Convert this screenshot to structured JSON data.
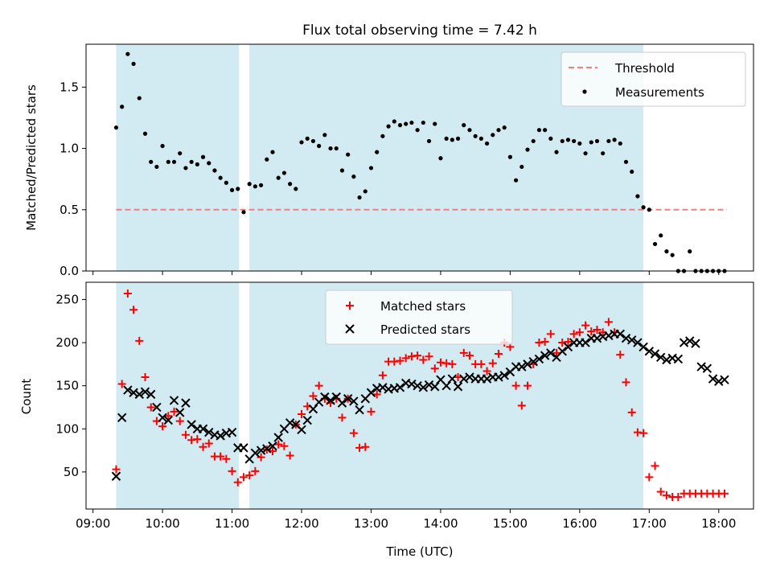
{
  "title": "Flux total observing time = 7.42 h",
  "colors": {
    "shade": "#add8e6",
    "threshold": "#f08080",
    "measurement": "#000000",
    "matched": "#ff0000",
    "predicted": "#000000"
  },
  "chart_data": [
    {
      "type": "scatter",
      "ylabel": "Matched/Predicted stars",
      "xlabel": "",
      "xlim": [
        "08:54",
        "18:30"
      ],
      "ylim": [
        0,
        1.85
      ],
      "yticks": [
        "0.0",
        "0.5",
        "1.0",
        "1.5"
      ],
      "grid": false,
      "legend_position": "top-right",
      "legend": [
        "Threshold",
        "Measurements"
      ],
      "shaded_intervals": [
        [
          "09:20",
          "11:06"
        ],
        [
          "11:15",
          "16:55"
        ]
      ],
      "threshold": {
        "name": "Threshold",
        "x": [
          "09:20",
          "18:07"
        ],
        "y": 0.5
      },
      "series": [
        {
          "name": "Measurements",
          "x": [
            "09:20",
            "09:25",
            "09:30",
            "09:35",
            "09:40",
            "09:45",
            "09:50",
            "09:55",
            "10:00",
            "10:05",
            "10:10",
            "10:15",
            "10:20",
            "10:25",
            "10:30",
            "10:35",
            "10:40",
            "10:45",
            "10:50",
            "10:55",
            "11:00",
            "11:05",
            "11:10",
            "11:15",
            "11:20",
            "11:25",
            "11:30",
            "11:35",
            "11:40",
            "11:45",
            "11:50",
            "11:55",
            "12:00",
            "12:05",
            "12:10",
            "12:15",
            "12:20",
            "12:25",
            "12:30",
            "12:35",
            "12:40",
            "12:45",
            "12:50",
            "12:55",
            "13:00",
            "13:05",
            "13:10",
            "13:15",
            "13:20",
            "13:25",
            "13:30",
            "13:35",
            "13:40",
            "13:45",
            "13:50",
            "13:55",
            "14:00",
            "14:05",
            "14:10",
            "14:15",
            "14:20",
            "14:25",
            "14:30",
            "14:35",
            "14:40",
            "14:45",
            "14:50",
            "14:55",
            "15:00",
            "15:05",
            "15:10",
            "15:15",
            "15:20",
            "15:25",
            "15:30",
            "15:35",
            "15:40",
            "15:45",
            "15:50",
            "15:55",
            "16:00",
            "16:05",
            "16:10",
            "16:15",
            "16:20",
            "16:25",
            "16:30",
            "16:35",
            "16:40",
            "16:45",
            "16:50",
            "16:55",
            "17:00",
            "17:05",
            "17:10",
            "17:15",
            "17:20",
            "17:25",
            "17:30",
            "17:35",
            "17:40",
            "17:45",
            "17:50",
            "17:55",
            "18:00",
            "18:05"
          ],
          "y": [
            1.17,
            1.34,
            1.77,
            1.69,
            1.41,
            1.12,
            0.89,
            0.85,
            1.02,
            0.89,
            0.89,
            0.96,
            0.84,
            0.89,
            0.87,
            0.93,
            0.88,
            0.82,
            0.76,
            0.72,
            0.66,
            0.67,
            0.48,
            0.71,
            0.69,
            0.7,
            0.91,
            0.97,
            0.76,
            0.8,
            0.71,
            0.67,
            1.05,
            1.08,
            1.06,
            1.02,
            1.11,
            1.0,
            1.0,
            0.82,
            0.95,
            0.77,
            0.6,
            0.65,
            0.84,
            0.97,
            1.1,
            1.18,
            1.22,
            1.19,
            1.2,
            1.21,
            1.15,
            1.21,
            1.06,
            1.2,
            0.92,
            1.08,
            1.07,
            1.08,
            1.19,
            1.15,
            1.1,
            1.08,
            1.04,
            1.11,
            1.15,
            1.17,
            0.93,
            0.74,
            0.85,
            0.99,
            1.06,
            1.15,
            1.15,
            1.08,
            0.97,
            1.06,
            1.07,
            1.06,
            1.04,
            0.96,
            1.05,
            1.06,
            0.96,
            1.06,
            1.07,
            1.04,
            0.89,
            0.81,
            0.61,
            0.52,
            0.5,
            0.22,
            0.29,
            0.16,
            0.13,
            0.0,
            0.0,
            0.16,
            0.0,
            0.0,
            0.0,
            0.0,
            0.0,
            0.0
          ]
        }
      ]
    },
    {
      "type": "scatter",
      "ylabel": "Count",
      "xlabel": "Time (UTC)",
      "xlim": [
        "08:54",
        "18:30"
      ],
      "ylim": [
        7,
        270
      ],
      "yticks": [
        "50",
        "100",
        "150",
        "200",
        "250"
      ],
      "xticks": [
        "09:00",
        "10:00",
        "11:00",
        "12:00",
        "13:00",
        "14:00",
        "15:00",
        "16:00",
        "17:00",
        "18:00"
      ],
      "grid": false,
      "legend_position": "top-center",
      "legend": [
        "Matched stars",
        "Predicted stars"
      ],
      "shaded_intervals": [
        [
          "09:20",
          "11:06"
        ],
        [
          "11:15",
          "16:55"
        ]
      ],
      "series": [
        {
          "name": "Matched stars",
          "marker": "+",
          "x": [
            "09:20",
            "09:25",
            "09:30",
            "09:35",
            "09:40",
            "09:45",
            "09:50",
            "09:55",
            "10:00",
            "10:05",
            "10:10",
            "10:15",
            "10:20",
            "10:25",
            "10:30",
            "10:35",
            "10:40",
            "10:45",
            "10:50",
            "10:55",
            "11:00",
            "11:05",
            "11:10",
            "11:15",
            "11:20",
            "11:25",
            "11:30",
            "11:35",
            "11:40",
            "11:45",
            "11:50",
            "11:55",
            "12:00",
            "12:05",
            "12:10",
            "12:15",
            "12:20",
            "12:25",
            "12:30",
            "12:35",
            "12:40",
            "12:45",
            "12:50",
            "12:55",
            "13:00",
            "13:05",
            "13:10",
            "13:15",
            "13:20",
            "13:25",
            "13:30",
            "13:35",
            "13:40",
            "13:45",
            "13:50",
            "13:55",
            "14:00",
            "14:05",
            "14:10",
            "14:15",
            "14:20",
            "14:25",
            "14:30",
            "14:35",
            "14:40",
            "14:45",
            "14:50",
            "14:55",
            "15:00",
            "15:05",
            "15:10",
            "15:15",
            "15:20",
            "15:25",
            "15:30",
            "15:35",
            "15:40",
            "15:45",
            "15:50",
            "15:55",
            "16:00",
            "16:05",
            "16:10",
            "16:15",
            "16:20",
            "16:25",
            "16:30",
            "16:35",
            "16:40",
            "16:45",
            "16:50",
            "16:55",
            "17:00",
            "17:05",
            "17:10",
            "17:15",
            "17:20",
            "17:25",
            "17:30",
            "17:35",
            "17:40",
            "17:45",
            "17:50",
            "17:55",
            "18:00",
            "18:05"
          ],
          "y": [
            53,
            152,
            257,
            238,
            202,
            160,
            125,
            109,
            103,
            115,
            120,
            109,
            93,
            87,
            88,
            79,
            83,
            68,
            68,
            65,
            51,
            38,
            44,
            46,
            51,
            67,
            76,
            74,
            82,
            80,
            69,
            105,
            117,
            126,
            138,
            150,
            135,
            130,
            135,
            113,
            135,
            95,
            78,
            79,
            120,
            140,
            162,
            178,
            178,
            179,
            182,
            184,
            185,
            180,
            184,
            170,
            177,
            176,
            175,
            160,
            188,
            185,
            175,
            175,
            167,
            176,
            187,
            200,
            195,
            150,
            127,
            150,
            175,
            200,
            201,
            210,
            188,
            200,
            201,
            210,
            212,
            220,
            213,
            215,
            212,
            224,
            212,
            186,
            154,
            119,
            96,
            95,
            44,
            57,
            27,
            23,
            21,
            21,
            25,
            25,
            25,
            25,
            25,
            25,
            25,
            25
          ]
        },
        {
          "name": "Predicted stars",
          "marker": "x",
          "x": [
            "09:20",
            "09:25",
            "09:30",
            "09:35",
            "09:40",
            "09:45",
            "09:50",
            "09:55",
            "10:00",
            "10:05",
            "10:10",
            "10:15",
            "10:20",
            "10:25",
            "10:30",
            "10:35",
            "10:40",
            "10:45",
            "10:50",
            "10:55",
            "11:00",
            "11:05",
            "11:10",
            "11:15",
            "11:20",
            "11:25",
            "11:30",
            "11:35",
            "11:40",
            "11:45",
            "11:50",
            "11:55",
            "12:00",
            "12:05",
            "12:10",
            "12:15",
            "12:20",
            "12:25",
            "12:30",
            "12:35",
            "12:40",
            "12:45",
            "12:50",
            "12:55",
            "13:00",
            "13:05",
            "13:10",
            "13:15",
            "13:20",
            "13:25",
            "13:30",
            "13:35",
            "13:40",
            "13:45",
            "13:50",
            "13:55",
            "14:00",
            "14:05",
            "14:10",
            "14:15",
            "14:20",
            "14:25",
            "14:30",
            "14:35",
            "14:40",
            "14:45",
            "14:50",
            "14:55",
            "15:00",
            "15:05",
            "15:10",
            "15:15",
            "15:20",
            "15:25",
            "15:30",
            "15:35",
            "15:40",
            "15:45",
            "15:50",
            "15:55",
            "16:00",
            "16:05",
            "16:10",
            "16:15",
            "16:20",
            "16:25",
            "16:30",
            "16:35",
            "16:40",
            "16:45",
            "16:50",
            "16:55",
            "17:00",
            "17:05",
            "17:10",
            "17:15",
            "17:20",
            "17:25",
            "17:30",
            "17:35",
            "17:40",
            "17:45",
            "17:50",
            "17:55",
            "18:00",
            "18:05"
          ],
          "y": [
            45,
            113,
            145,
            142,
            140,
            143,
            140,
            125,
            113,
            110,
            133,
            119,
            130,
            105,
            100,
            100,
            96,
            93,
            92,
            95,
            96,
            78,
            78,
            65,
            72,
            75,
            77,
            80,
            90,
            100,
            107,
            105,
            99,
            110,
            123,
            131,
            137,
            133,
            137,
            130,
            135,
            132,
            122,
            135,
            142,
            147,
            148,
            146,
            147,
            148,
            153,
            152,
            150,
            148,
            151,
            149,
            157,
            150,
            158,
            149,
            158,
            160,
            158,
            158,
            158,
            160,
            160,
            162,
            166,
            172,
            172,
            175,
            178,
            181,
            185,
            188,
            183,
            190,
            195,
            200,
            200,
            200,
            205,
            205,
            207,
            208,
            210,
            210,
            205,
            203,
            200,
            195,
            190,
            187,
            183,
            180,
            182,
            181,
            200,
            202,
            199,
            172,
            170,
            158,
            155,
            157
          ]
        }
      ]
    }
  ]
}
